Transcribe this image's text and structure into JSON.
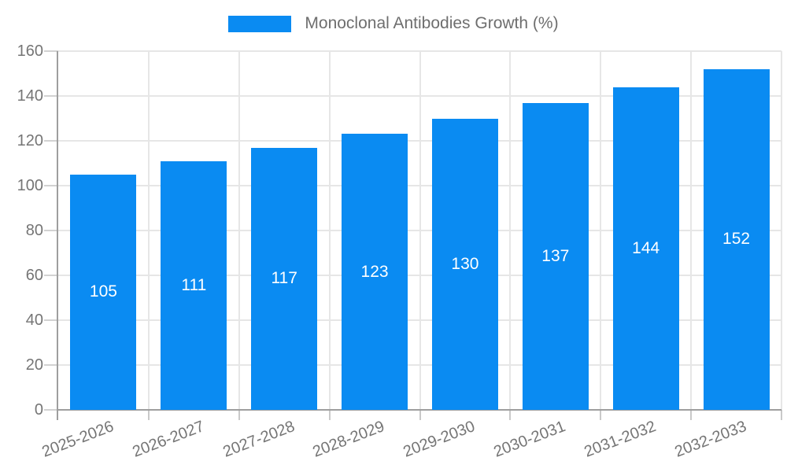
{
  "chart_data": {
    "type": "bar",
    "title": "",
    "legend": {
      "label": "Monoclonal Antibodies Growth (%)",
      "position": "top"
    },
    "categories": [
      "2025-2026",
      "2026-2027",
      "2027-2028",
      "2028-2029",
      "2029-2030",
      "2030-2031",
      "2031-2032",
      "2032-2033"
    ],
    "series": [
      {
        "name": "Monoclonal Antibodies Growth (%)",
        "values": [
          105,
          111,
          117,
          123,
          130,
          137,
          144,
          152
        ]
      }
    ],
    "xlabel": "",
    "ylabel": "",
    "ylim": [
      0,
      160
    ],
    "ytick_step": 20,
    "grid": true,
    "value_labels": {
      "visible": true,
      "position": "center-of-bar",
      "color": "#ffffff"
    },
    "colors": {
      "bar": "#0a8bf2",
      "gridline": "#e6e6e6",
      "axis": "#9e9e9e",
      "tick": "#d2d2d2",
      "tick_text": "#757575",
      "legend_text": "#6e6e6e",
      "background": "#ffffff"
    }
  }
}
